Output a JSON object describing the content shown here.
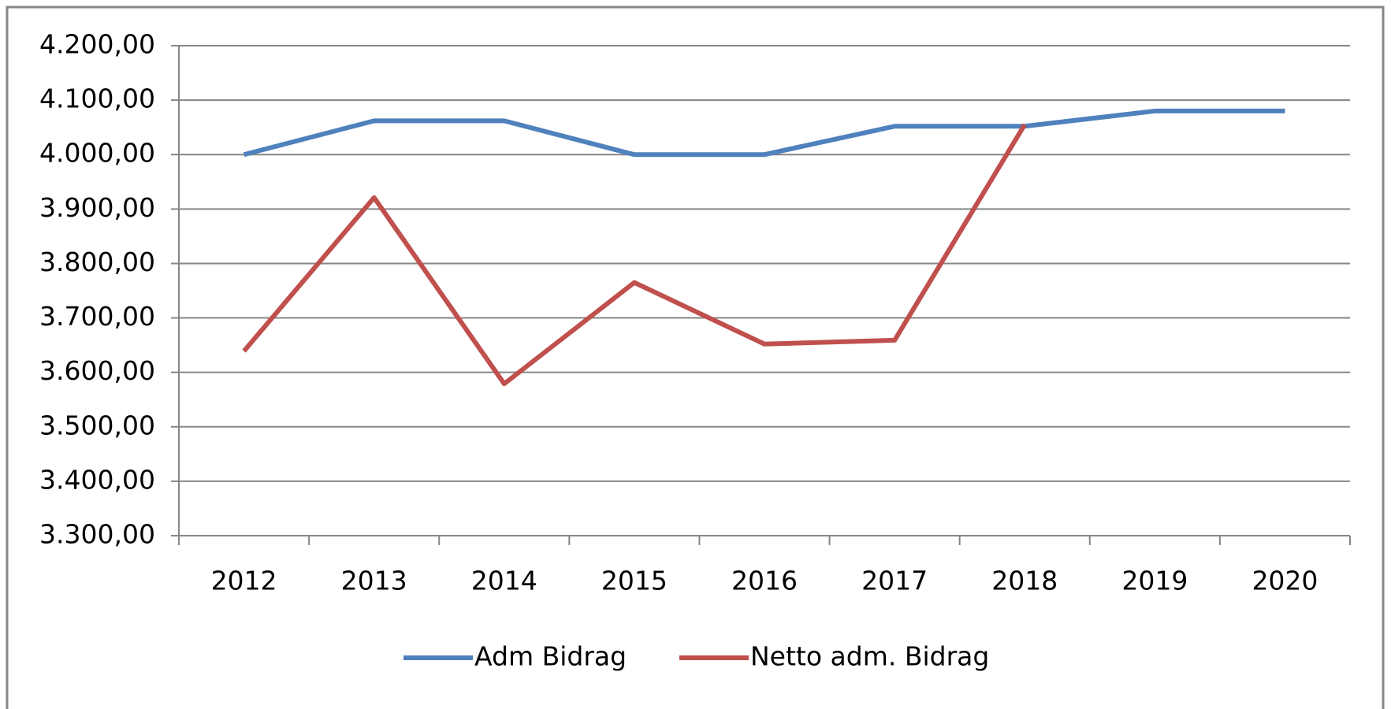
{
  "chart_data": {
    "type": "line",
    "categories": [
      "2012",
      "2013",
      "2014",
      "2015",
      "2016",
      "2017",
      "2018",
      "2019",
      "2020"
    ],
    "series": [
      {
        "name": "Adm Bidrag",
        "color": "#4f81bd",
        "values": [
          4000,
          4062,
          4062,
          4000,
          4000,
          4052,
          4052,
          4080,
          4080
        ]
      },
      {
        "name": "Netto adm. Bidrag",
        "color": "#c0504d",
        "values": [
          3639,
          3921,
          3579,
          3765,
          3652,
          3659,
          4055,
          null,
          null
        ]
      }
    ],
    "ylim": [
      3300,
      4200
    ],
    "yticks": [
      {
        "value": 3300,
        "label": "3.300,00"
      },
      {
        "value": 3400,
        "label": "3.400,00"
      },
      {
        "value": 3500,
        "label": "3.500,00"
      },
      {
        "value": 3600,
        "label": "3.600,00"
      },
      {
        "value": 3700,
        "label": "3.700,00"
      },
      {
        "value": 3800,
        "label": "3.800,00"
      },
      {
        "value": 3900,
        "label": "3.900,00"
      },
      {
        "value": 4000,
        "label": "4.000,00"
      },
      {
        "value": 4100,
        "label": "4.100,00"
      },
      {
        "value": 4200,
        "label": "4.200,00"
      }
    ],
    "grid": true,
    "legend": "bottom"
  }
}
